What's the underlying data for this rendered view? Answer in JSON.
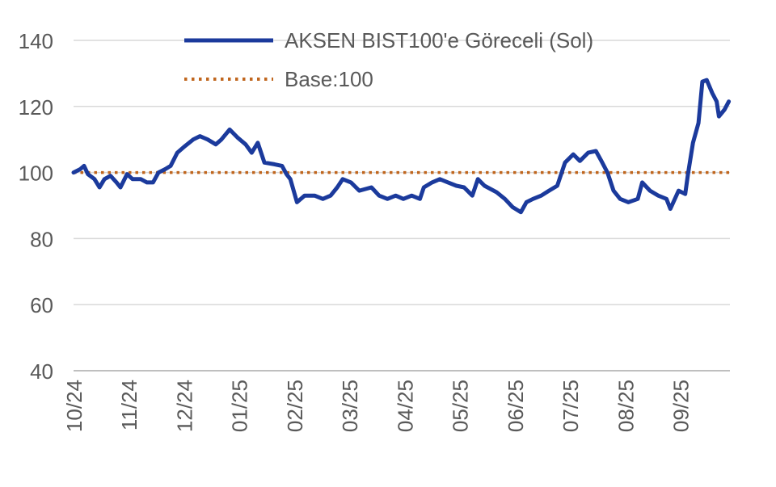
{
  "chart_data": {
    "type": "line",
    "title": "",
    "xlabel": "",
    "ylabel": "",
    "ylim": [
      40,
      140
    ],
    "yticks": [
      40,
      60,
      80,
      100,
      120,
      140
    ],
    "xlim_months": [
      0,
      11.9
    ],
    "x_tick_labels": [
      "10/24",
      "11/24",
      "12/24",
      "01/25",
      "02/25",
      "03/25",
      "04/25",
      "05/25",
      "06/25",
      "07/25",
      "08/25",
      "09/25"
    ],
    "grid": true,
    "legend_position": "top-right",
    "series": [
      {
        "name": "AKSEN BIST100'e Göreceli (Sol)",
        "color": "#1b3a9c",
        "x_months": [
          0,
          0.12,
          0.19,
          0.26,
          0.38,
          0.47,
          0.56,
          0.67,
          0.78,
          0.85,
          0.97,
          1.07,
          1.22,
          1.33,
          1.44,
          1.54,
          1.66,
          1.76,
          1.88,
          2.02,
          2.17,
          2.29,
          2.43,
          2.58,
          2.68,
          2.83,
          2.98,
          3.12,
          3.23,
          3.34,
          3.46,
          3.64,
          3.78,
          3.86,
          3.93,
          4.05,
          4.19,
          4.37,
          4.52,
          4.66,
          4.78,
          4.88,
          5.03,
          5.18,
          5.4,
          5.54,
          5.69,
          5.84,
          5.98,
          6.13,
          6.28,
          6.35,
          6.5,
          6.64,
          6.79,
          6.94,
          7.08,
          7.23,
          7.33,
          7.45,
          7.67,
          7.82,
          7.96,
          8.11,
          8.21,
          8.33,
          8.48,
          8.62,
          8.77,
          8.91,
          9.06,
          9.18,
          9.33,
          9.47,
          9.57,
          9.68,
          9.79,
          9.91,
          10.06,
          10.23,
          10.31,
          10.45,
          10.6,
          10.75,
          10.82,
          10.97,
          11.09,
          11.14,
          11.23,
          11.33,
          11.4,
          11.48,
          11.58,
          11.66,
          11.7,
          11.8,
          11.88
        ],
        "values": [
          100,
          101,
          102,
          99.5,
          98,
          95.5,
          98,
          99,
          97,
          95.5,
          99.5,
          98,
          98,
          97,
          97,
          100,
          101,
          102,
          106,
          108,
          110,
          111,
          110,
          108.5,
          110,
          113,
          110.5,
          108.5,
          106,
          109,
          103,
          102.5,
          102,
          99.5,
          98,
          91,
          93,
          93,
          92,
          93,
          95.5,
          98,
          97,
          94.5,
          95.5,
          93,
          92,
          93,
          92,
          93,
          92,
          95.5,
          97,
          98,
          97,
          96,
          95.5,
          93,
          98,
          96,
          94,
          92,
          89.5,
          88,
          91,
          92,
          93,
          94.5,
          96,
          103,
          105.5,
          103.5,
          106,
          106.5,
          103.5,
          100,
          94.5,
          92,
          91,
          92,
          97,
          94.5,
          93,
          92,
          89,
          94.5,
          93.5,
          99.5,
          109,
          115,
          127.5,
          128,
          124,
          121.5,
          117,
          119,
          121.5
        ]
      },
      {
        "name": "Base:100",
        "color": "#c0661e",
        "constant": 100
      }
    ]
  }
}
